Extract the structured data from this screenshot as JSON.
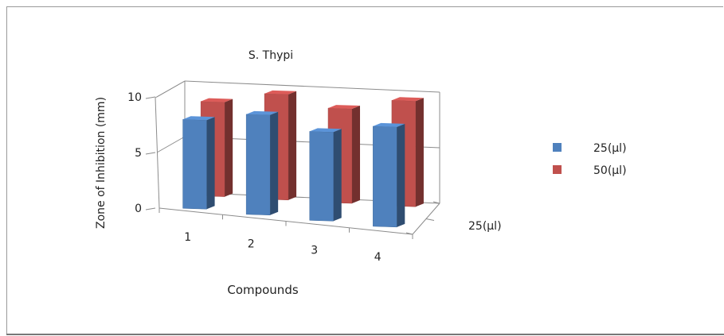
{
  "chart_data": {
    "type": "bar",
    "title": "S. Thypi",
    "xlabel": "Compounds",
    "ylabel": "Zone of Inhibition (mm)",
    "categories": [
      "1",
      "2",
      "3",
      "4"
    ],
    "ylim": [
      0,
      10
    ],
    "yticks": [
      "0",
      "5",
      "10"
    ],
    "depth_label": "25(µl)",
    "grid": true,
    "legend_position": "right",
    "series": [
      {
        "name": "25(µl)",
        "values": [
          8,
          9,
          8,
          9
        ],
        "color": "#4f81bd"
      },
      {
        "name": "50(µl)",
        "values": [
          8.5,
          9.5,
          8.5,
          9.5
        ],
        "color": "#c0504d"
      }
    ]
  }
}
